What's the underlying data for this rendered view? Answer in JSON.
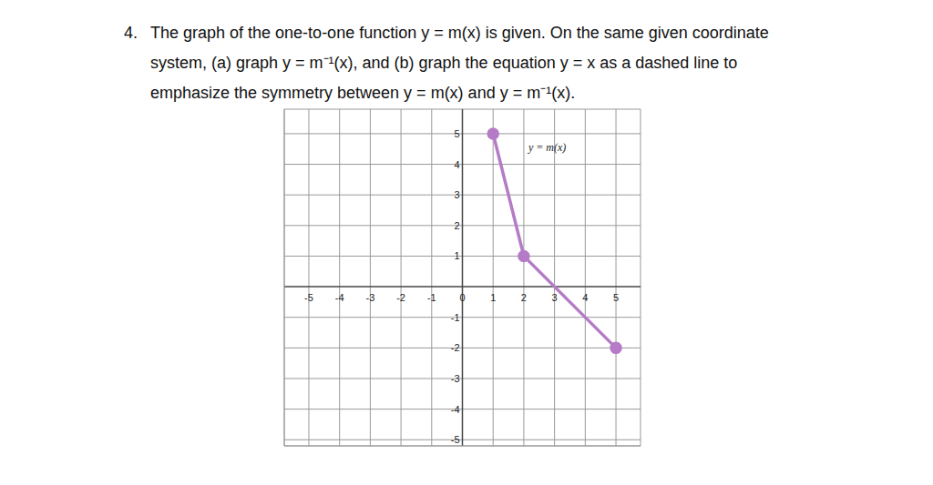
{
  "problem": {
    "number": "4.",
    "lines": [
      "The graph of the one-to-one function y = m(x) is given. On the same given coordinate",
      "system, (a) graph y = m⁻¹(x), and (b) graph the equation y = x as a dashed line to",
      "emphasize the symmetry between y = m(x) and y = m⁻¹(x)."
    ]
  },
  "chart_data": {
    "type": "line",
    "x": [
      1,
      2,
      5
    ],
    "series": [
      {
        "name": "y = m(x)",
        "color": "#b57bc6",
        "values": [
          5,
          1,
          -2
        ],
        "marker": "circle",
        "line_style": "solid"
      }
    ],
    "xlim": [
      -5.8,
      5.8
    ],
    "ylim": [
      -5.2,
      5.8
    ],
    "xticks": [
      -5,
      -4,
      -3,
      -2,
      -1,
      0,
      1,
      2,
      3,
      4,
      5
    ],
    "yticks": [
      -5,
      -4,
      -3,
      -2,
      -1,
      1,
      2,
      3,
      4,
      5
    ],
    "grid": true
  }
}
